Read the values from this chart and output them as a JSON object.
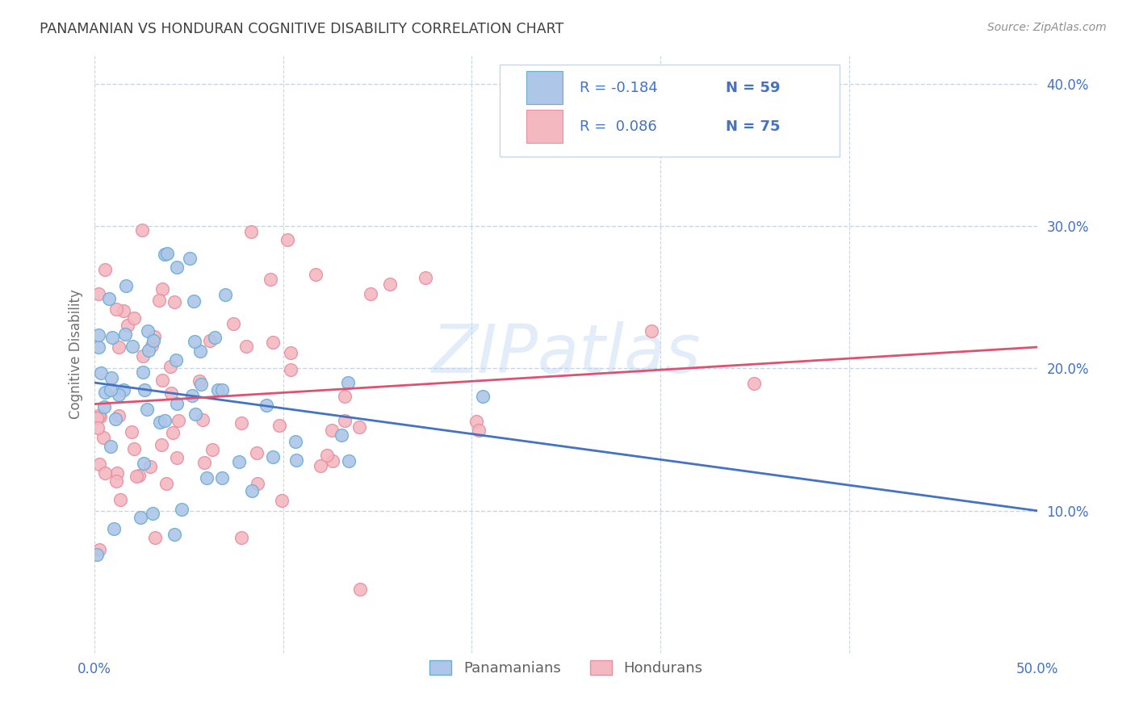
{
  "title": "PANAMANIAN VS HONDURAN COGNITIVE DISABILITY CORRELATION CHART",
  "source": "Source: ZipAtlas.com",
  "ylabel": "Cognitive Disability",
  "xlim": [
    0.0,
    0.5
  ],
  "ylim": [
    0.0,
    0.42
  ],
  "xticks": [
    0.0,
    0.1,
    0.2,
    0.3,
    0.4,
    0.5
  ],
  "yticks": [
    0.1,
    0.2,
    0.3,
    0.4
  ],
  "xtick_labels": [
    "0.0%",
    "",
    "",
    "",
    "",
    "50.0%"
  ],
  "ytick_labels": [
    "10.0%",
    "20.0%",
    "30.0%",
    "40.0%"
  ],
  "bottom_legend": [
    "Panamanians",
    "Hondurans"
  ],
  "panama_R": -0.184,
  "panama_N": 59,
  "honduran_R": 0.086,
  "honduran_N": 75,
  "panama_color": "#aec6e8",
  "honduran_color": "#f4b8c1",
  "panama_edge": "#6aaed6",
  "honduran_edge": "#e88fa0",
  "trend_panama_color": "#4472c4",
  "trend_honduran_color": "#e05070",
  "background_color": "#ffffff",
  "grid_color": "#c8d4e8",
  "title_color": "#404040",
  "axis_color": "#4472c4",
  "watermark": "ZIPatlas",
  "legend_r1": "R = -0.184",
  "legend_n1": "N = 59",
  "legend_r2": "R =  0.086",
  "legend_n2": "N = 75",
  "panama_line_start_y": 0.19,
  "panama_line_end_y": 0.1,
  "honduran_line_start_y": 0.175,
  "honduran_line_end_y": 0.215
}
